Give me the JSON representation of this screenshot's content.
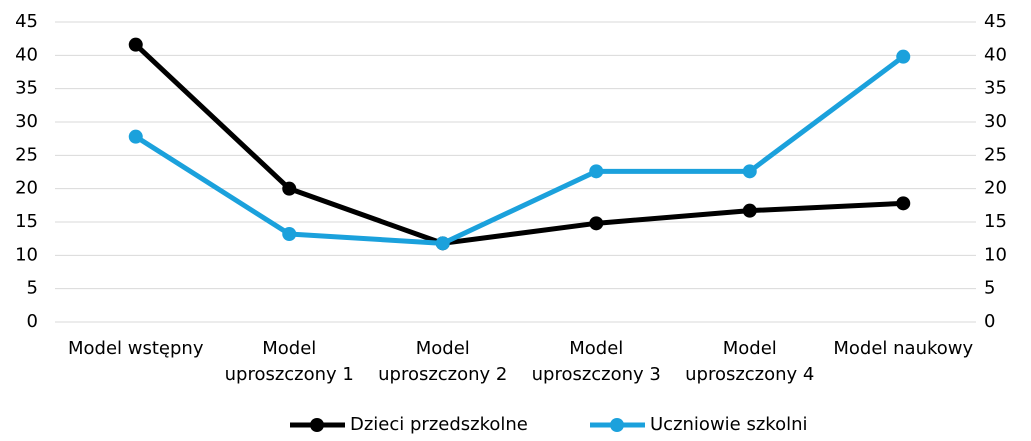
{
  "chart_data": {
    "type": "line",
    "categories": [
      "Model wstępny",
      "Model uproszczony 1",
      "Model uproszczony 2",
      "Model uproszczony 3",
      "Model uproszczony 4",
      "Model naukowy"
    ],
    "series": [
      {
        "name": "Dzieci przedszkolne",
        "color": "#000000",
        "values": [
          41.6,
          20,
          11.8,
          14.8,
          16.7,
          17.8
        ]
      },
      {
        "name": "Uczniowie szkolni",
        "color": "#1ba1dc",
        "values": [
          27.8,
          13.2,
          11.8,
          22.6,
          22.6,
          39.8
        ]
      }
    ],
    "ylim": [
      0,
      45
    ],
    "yticks": [
      0,
      5,
      10,
      15,
      20,
      25,
      30,
      35,
      40,
      45
    ],
    "y2lim": [
      0,
      45
    ],
    "y2ticks": [
      0,
      5,
      10,
      15,
      20,
      25,
      30,
      35,
      40,
      45
    ],
    "grid": true,
    "legend": "bottom"
  }
}
